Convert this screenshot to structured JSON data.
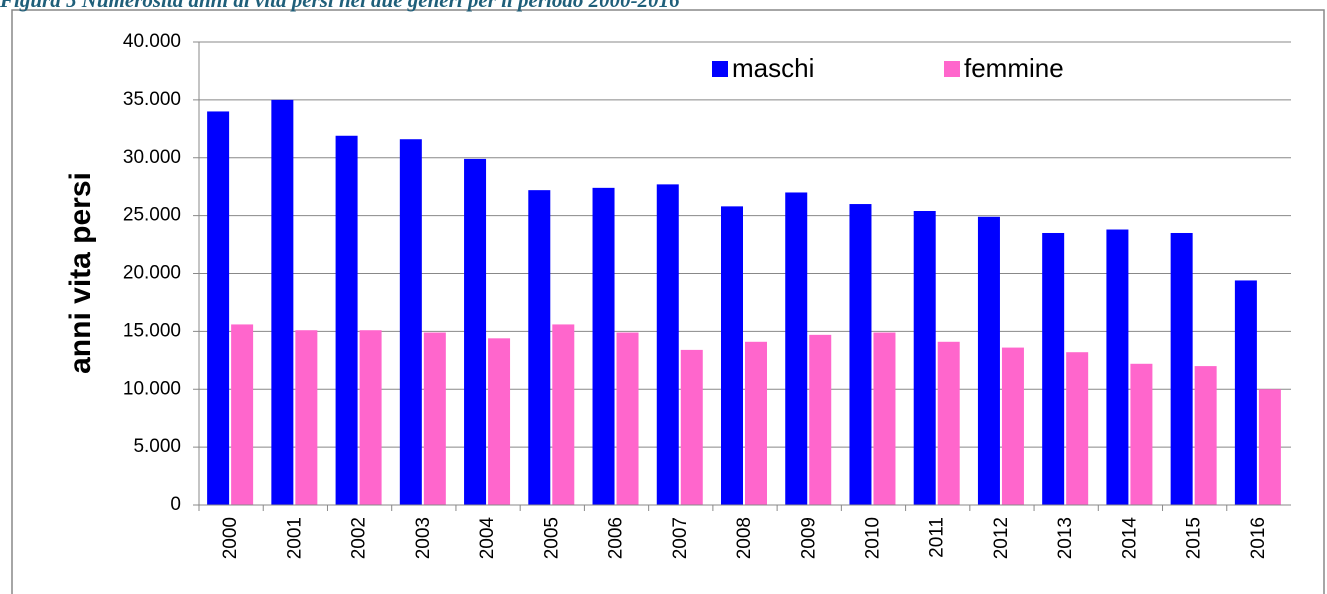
{
  "chart_data": {
    "type": "bar",
    "title": "Figura 5 Numerosità anni di vita persi nei due generi per il periodo 2000-2016",
    "y_label": "anni vita persi",
    "categories": [
      "2000",
      "2001",
      "2002",
      "2003",
      "2004",
      "2005",
      "2006",
      "2007",
      "2008",
      "2009",
      "2010",
      "2011",
      "2012",
      "2013",
      "2014",
      "2015",
      "2016"
    ],
    "series": [
      {
        "name": "maschi",
        "color": "#0000ff",
        "values": [
          34000,
          35000,
          31900,
          31600,
          29900,
          27200,
          27400,
          27700,
          25800,
          27000,
          26000,
          25400,
          24900,
          23500,
          23800,
          23500,
          19400
        ]
      },
      {
        "name": "femmine",
        "color": "#ff66cc",
        "values": [
          15600,
          15100,
          15100,
          14900,
          14400,
          15600,
          14900,
          13400,
          14100,
          14700,
          14900,
          14100,
          13600,
          13200,
          12200,
          12000,
          10000
        ]
      }
    ],
    "ylim": [
      0,
      40000
    ],
    "yticks": [
      0,
      {
        "value": 5000,
        "label": "5.000"
      },
      {
        "value": 10000,
        "label": "10.000"
      },
      {
        "value": 15000,
        "label": "15.000"
      },
      {
        "value": 20000,
        "label": "20.000"
      },
      {
        "value": 25000,
        "label": "25.000"
      },
      {
        "value": 30000,
        "label": "30.000"
      },
      {
        "value": 35000,
        "label": "35.000"
      },
      {
        "value": 40000,
        "label": "40.000"
      }
    ],
    "grid": true,
    "legend": "upper right"
  }
}
